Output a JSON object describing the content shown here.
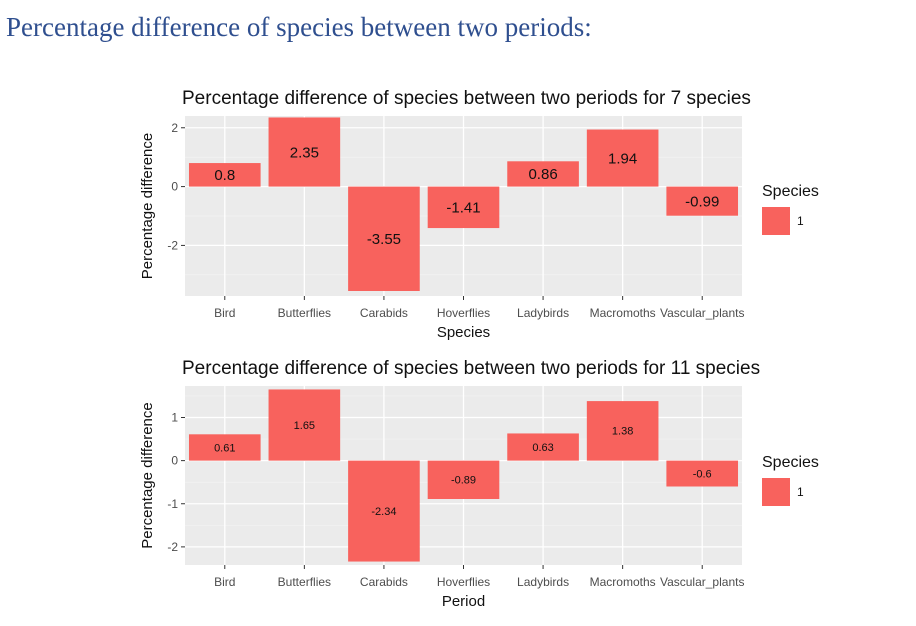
{
  "page": {
    "heading": "Percentage difference of species between two periods:"
  },
  "colors": {
    "bar": "#f8625d",
    "panel": "#ebebeb",
    "grid_major": "#ffffff",
    "grid_minor": "#f4f4f4"
  },
  "chart_data": [
    {
      "type": "bar",
      "title": "Percentage difference of species between two periods for 7 species",
      "xlabel": "Species",
      "ylabel": "Percentage difference",
      "categories": [
        "Bird",
        "Butterflies",
        "Carabids",
        "Hoverflies",
        "Ladybirds",
        "Macromoths",
        "Vascular_plants"
      ],
      "series": [
        {
          "name": "1",
          "values": [
            0.8,
            2.35,
            -3.55,
            -1.41,
            0.86,
            1.94,
            -0.99
          ]
        }
      ],
      "data_labels": [
        "0.8",
        "2.35",
        "-3.55",
        "-1.41",
        "0.86",
        "1.94",
        "-0.99"
      ],
      "ylim": [
        -3.72,
        2.4
      ],
      "yticks": [
        -2,
        0,
        2
      ],
      "legend_title": "Species",
      "legend_position": "right",
      "grid": true
    },
    {
      "type": "bar",
      "title": "Percentage difference of species between two periods for 11 species",
      "xlabel": "Period",
      "ylabel": "Percentage difference",
      "categories": [
        "Bird",
        "Butterflies",
        "Carabids",
        "Hoverflies",
        "Ladybirds",
        "Macromoths",
        "Vascular_plants"
      ],
      "series": [
        {
          "name": "1",
          "values": [
            0.61,
            1.65,
            -2.34,
            -0.89,
            0.63,
            1.38,
            -0.6
          ]
        }
      ],
      "data_labels": [
        "0.61",
        "1.65",
        "-2.34",
        "-0.89",
        "0.63",
        "1.38",
        "-0.6"
      ],
      "ylim": [
        -2.42,
        1.73
      ],
      "yticks": [
        -2,
        -1,
        0,
        1
      ],
      "legend_title": "Species",
      "legend_position": "right",
      "grid": true
    }
  ]
}
